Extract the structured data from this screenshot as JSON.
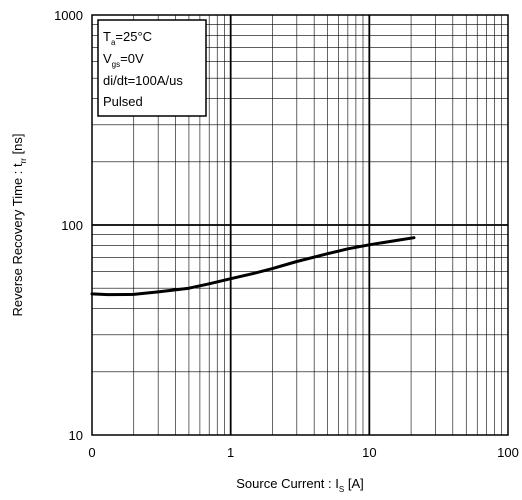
{
  "chart_data": {
    "type": "line",
    "x_scale": "log",
    "y_scale": "log",
    "xlim": [
      0.1,
      100
    ],
    "ylim": [
      10,
      1000
    ],
    "x_ticks": [
      {
        "value": 0.1,
        "label": "0"
      },
      {
        "value": 1,
        "label": "1"
      },
      {
        "value": 10,
        "label": "10"
      },
      {
        "value": 100,
        "label": "100"
      }
    ],
    "y_ticks": [
      {
        "value": 10,
        "label": "10"
      },
      {
        "value": 100,
        "label": "100"
      },
      {
        "value": 1000,
        "label": "1000"
      }
    ],
    "grid": true,
    "xlabel": {
      "main": "Source Current : I",
      "sub": "S",
      "unit": "  [A]"
    },
    "ylabel": {
      "main": "Reverse Recovery Time : t",
      "sub": "rr",
      "unit": " [ns]"
    },
    "conditions": {
      "ta": {
        "main": "T",
        "sub": "a",
        "rest": "=25°C"
      },
      "vgs": {
        "main": "V",
        "sub": "gs",
        "rest": "=0V"
      },
      "didt": "di/dt=100A/us",
      "mode": "Pulsed"
    },
    "series": [
      {
        "x": [
          0.1,
          0.13,
          0.2,
          0.3,
          0.5,
          0.7,
          1,
          1.5,
          2,
          3,
          5,
          7,
          10,
          15,
          21
        ],
        "y": [
          47,
          46.6,
          46.7,
          48,
          50,
          52.5,
          55.5,
          59,
          62,
          67,
          73,
          77,
          80.5,
          84,
          87
        ]
      }
    ]
  }
}
